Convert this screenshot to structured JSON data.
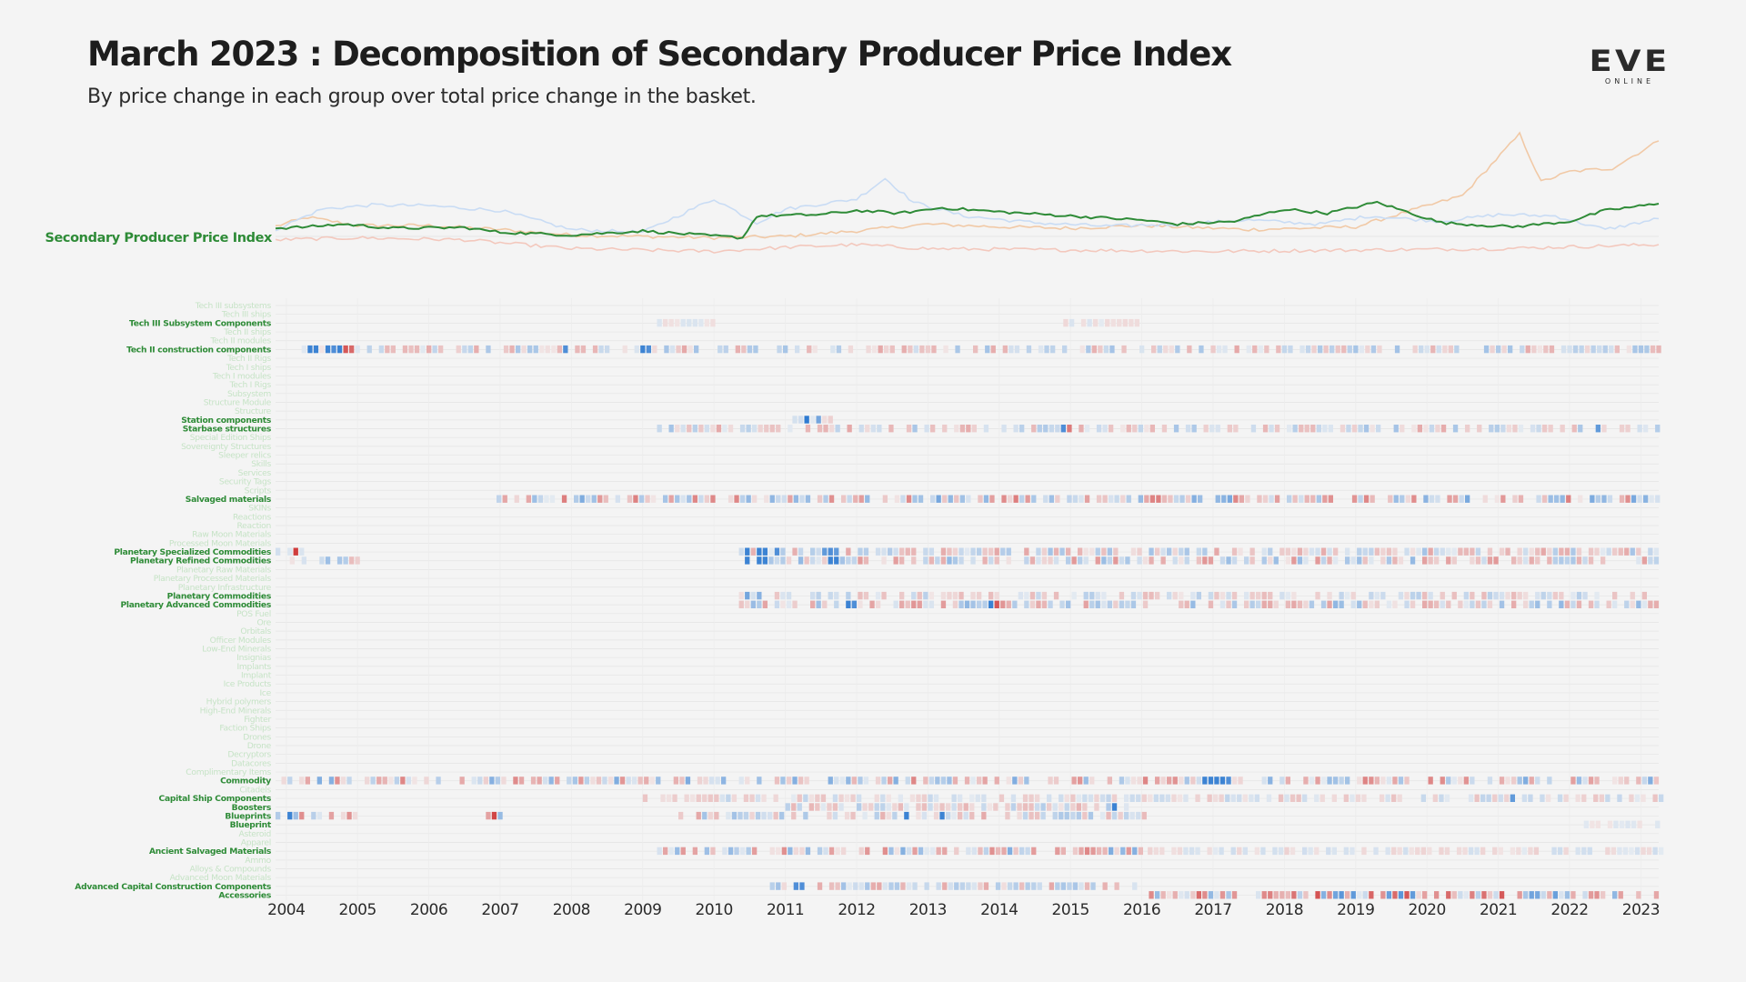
{
  "title": "March 2023 : Decomposition of Secondary Producer Price Index",
  "subtitle": "By price change in each group over total price change in the basket.",
  "logo": {
    "main": "EVE",
    "sub": "ONLINE"
  },
  "colors": {
    "index_line": "#2e8b37",
    "label_active": "#2e8b37",
    "label_faded": "#c6e3c6",
    "positive": "#cf3a3a",
    "negative": "#2f7bd1",
    "grid": "#e3e3e3",
    "ghost_red": "#f3c8bd",
    "ghost_blue": "#c9dcf4",
    "ghost_peach": "#f1c9a6"
  },
  "chart_data": {
    "type": "heatmap",
    "title": "March 2023 : Decomposition of Secondary Producer Price Index",
    "subtitle": "By price change in each group over total price change in the basket.",
    "x_ticks": [
      "2004",
      "2005",
      "2006",
      "2007",
      "2008",
      "2009",
      "2010",
      "2011",
      "2012",
      "2013",
      "2014",
      "2015",
      "2016",
      "2017",
      "2018",
      "2019",
      "2020",
      "2021",
      "2022",
      "2023"
    ],
    "x_range": [
      2003.85,
      2023.25
    ],
    "index_series": {
      "name": "Secondary Producer Price Index",
      "points": [
        [
          2003.85,
          0.12
        ],
        [
          2004.3,
          0.14
        ],
        [
          2004.8,
          0.18
        ],
        [
          2005.5,
          0.12
        ],
        [
          2006.5,
          0.13
        ],
        [
          2007.0,
          0.06
        ],
        [
          2008.0,
          0.02
        ],
        [
          2009.0,
          0.08
        ],
        [
          2009.8,
          0.02
        ],
        [
          2010.4,
          -0.02
        ],
        [
          2010.6,
          0.3
        ],
        [
          2011.5,
          0.32
        ],
        [
          2012.0,
          0.38
        ],
        [
          2012.6,
          0.34
        ],
        [
          2013.2,
          0.42
        ],
        [
          2014.0,
          0.36
        ],
        [
          2015.0,
          0.3
        ],
        [
          2016.0,
          0.24
        ],
        [
          2016.5,
          0.18
        ],
        [
          2017.3,
          0.22
        ],
        [
          2018.0,
          0.4
        ],
        [
          2018.6,
          0.34
        ],
        [
          2019.3,
          0.5
        ],
        [
          2020.2,
          0.2
        ],
        [
          2021.2,
          0.14
        ],
        [
          2022.0,
          0.22
        ],
        [
          2022.5,
          0.38
        ],
        [
          2023.25,
          0.48
        ]
      ]
    },
    "ghost_series": [
      {
        "name": "peach",
        "points": [
          [
            2003.85,
            0.15
          ],
          [
            2004.3,
            0.28
          ],
          [
            2005.0,
            0.16
          ],
          [
            2006.0,
            0.16
          ],
          [
            2007.0,
            0.1
          ],
          [
            2008.0,
            0.02
          ],
          [
            2010.0,
            -0.02
          ],
          [
            2011.0,
            0.0
          ],
          [
            2012.0,
            0.08
          ],
          [
            2013.0,
            0.18
          ],
          [
            2014.0,
            0.14
          ],
          [
            2015.0,
            0.12
          ],
          [
            2016.0,
            0.16
          ],
          [
            2017.5,
            0.1
          ],
          [
            2019.0,
            0.14
          ],
          [
            2020.5,
            0.6
          ],
          [
            2020.9,
            1.05
          ],
          [
            2021.3,
            1.5
          ],
          [
            2021.6,
            0.8
          ],
          [
            2022.0,
            0.95
          ],
          [
            2022.6,
            1.0
          ],
          [
            2023.25,
            1.4
          ]
        ]
      },
      {
        "name": "blue",
        "points": [
          [
            2003.85,
            0.1
          ],
          [
            2004.5,
            0.4
          ],
          [
            2005.2,
            0.46
          ],
          [
            2006.0,
            0.45
          ],
          [
            2007.0,
            0.38
          ],
          [
            2008.0,
            0.1
          ],
          [
            2009.0,
            0.06
          ],
          [
            2010.0,
            0.55
          ],
          [
            2010.6,
            0.2
          ],
          [
            2011.0,
            0.4
          ],
          [
            2012.0,
            0.55
          ],
          [
            2012.4,
            0.85
          ],
          [
            2012.8,
            0.5
          ],
          [
            2013.5,
            0.3
          ],
          [
            2014.5,
            0.2
          ],
          [
            2015.5,
            0.15
          ],
          [
            2016.5,
            0.18
          ],
          [
            2017.5,
            0.24
          ],
          [
            2018.5,
            0.18
          ],
          [
            2019.2,
            0.3
          ],
          [
            2020.2,
            0.22
          ],
          [
            2021.0,
            0.32
          ],
          [
            2021.8,
            0.3
          ],
          [
            2022.5,
            0.1
          ],
          [
            2023.25,
            0.26
          ]
        ]
      },
      {
        "name": "pink",
        "points": [
          [
            2003.85,
            -0.05
          ],
          [
            2005.0,
            -0.02
          ],
          [
            2006.5,
            -0.05
          ],
          [
            2008.0,
            -0.18
          ],
          [
            2010.0,
            -0.22
          ],
          [
            2011.0,
            -0.16
          ],
          [
            2012.0,
            -0.12
          ],
          [
            2013.0,
            -0.18
          ],
          [
            2015.0,
            -0.2
          ],
          [
            2017.0,
            -0.22
          ],
          [
            2019.0,
            -0.2
          ],
          [
            2021.0,
            -0.18
          ],
          [
            2023.25,
            -0.12
          ]
        ]
      }
    ],
    "categories": [
      "Tech III subsystems",
      "Tech III ships",
      "Tech III Subsystem Components",
      "Tech II ships",
      "Tech II modules",
      "Tech II construction components",
      "Tech II Rigs",
      "Tech I ships",
      "Tech I modules",
      "Tech I Rigs",
      "Subsystem",
      "Structure Module",
      "Structure",
      "Station components",
      "Starbase structures",
      "Special Edition Ships",
      "Sovereignty Structures",
      "Sleeper relics",
      "Skills",
      "Services",
      "Security Tags",
      "Scripts",
      "Salvaged materials",
      "SKINs",
      "Reactions",
      "Reaction",
      "Raw Moon Materials",
      "Processed Moon Materials",
      "Planetary Specialized Commodities",
      "Planetary Refined Commodities",
      "Planetary Raw Materials",
      "Planetary Processed Materials",
      "Planetary Infrastructure",
      "Planetary Commodities",
      "Planetary Advanced Commodities",
      "POS Fuel",
      "Ore",
      "Orbitals",
      "Officer Modules",
      "Low-End Minerals",
      "Insignias",
      "Implants",
      "Implant",
      "Ice Products",
      "Ice",
      "Hybrid polymers",
      "High-End Minerals",
      "Fighter",
      "Faction Ships",
      "Drones",
      "Drone",
      "Decryptors",
      "Datacores",
      "Complimentary Items",
      "Commodity",
      "Citadels",
      "Capital Ship Components",
      "Boosters",
      "Blueprints",
      "Blueprint",
      "Asteroid",
      "Apparel",
      "Ancient Salvaged Materials",
      "Ammo",
      "Alloys & Compounds",
      "Advanced Moon Materials",
      "Advanced Capital Construction Components",
      "Accessories"
    ],
    "active_categories": [
      "Tech III Subsystem Components",
      "Tech II construction components",
      "Station components",
      "Starbase structures",
      "Salvaged materials",
      "Planetary Specialized Commodities",
      "Planetary Refined Commodities",
      "Planetary Commodities",
      "Planetary Advanced Commodities",
      "Commodity",
      "Capital Ship Components",
      "Boosters",
      "Blueprints",
      "Blueprint",
      "Ancient Salvaged Materials",
      "Advanced Capital Construction Components",
      "Accessories"
    ],
    "value_scale": "signed share of total price change: positive (red) to negative (blue)",
    "row_series": [
      {
        "name": "Tech III Subsystem Components",
        "seed": 3,
        "spans": [
          [
            2009.2,
            2010.0,
            0.06
          ],
          [
            2014.9,
            2015.9,
            0.08
          ]
        ],
        "marks": [
          [
            2017.05,
            -1.0
          ]
        ]
      },
      {
        "name": "Tech II construction components",
        "seed": 5,
        "spans": [
          [
            2004.05,
            2023.25,
            0.35
          ]
        ],
        "marks": [
          [
            2004.3,
            -0.9
          ],
          [
            2004.45,
            -0.9
          ],
          [
            2004.55,
            -0.9
          ],
          [
            2004.65,
            -0.8
          ],
          [
            2004.75,
            -0.9
          ],
          [
            2004.85,
            0.8
          ],
          [
            2004.95,
            0.7
          ],
          [
            2007.9,
            -0.8
          ],
          [
            2009.0,
            -0.9
          ],
          [
            2009.1,
            -0.8
          ]
        ]
      },
      {
        "name": "Station components",
        "seed": 7,
        "spans": [
          [
            2011.1,
            2011.6,
            0.15
          ]
        ],
        "marks": [
          [
            2011.22,
            -1.0
          ],
          [
            2011.38,
            -0.6
          ]
        ]
      },
      {
        "name": "Starbase structures",
        "seed": 9,
        "spans": [
          [
            2009.2,
            2023.25,
            0.35
          ]
        ],
        "marks": [
          [
            2014.8,
            -0.8
          ],
          [
            2014.9,
            0.6
          ],
          [
            2022.3,
            -0.7
          ]
        ]
      },
      {
        "name": "Salvaged materials",
        "seed": 11,
        "spans": [
          [
            2006.95,
            2023.25,
            0.6
          ]
        ],
        "marks": []
      },
      {
        "name": "Planetary Specialized Commodities",
        "seed": 13,
        "spans": [
          [
            2003.85,
            2004.25,
            0.5
          ],
          [
            2010.35,
            2023.25,
            0.35
          ]
        ],
        "marks": [
          [
            2004.05,
            0.95
          ],
          [
            2010.45,
            -0.9
          ],
          [
            2010.55,
            -0.9
          ],
          [
            2010.65,
            -0.9
          ],
          [
            2010.85,
            -0.8
          ],
          [
            2011.5,
            -0.7
          ],
          [
            2011.6,
            -0.8
          ],
          [
            2011.7,
            -0.7
          ]
        ]
      },
      {
        "name": "Planetary Refined Commodities",
        "seed": 17,
        "spans": [
          [
            2004.05,
            2005.0,
            0.4
          ],
          [
            2010.35,
            2023.25,
            0.45
          ]
        ],
        "marks": [
          [
            2010.45,
            -0.9
          ],
          [
            2010.55,
            -0.9
          ],
          [
            2010.65,
            -0.9
          ],
          [
            2011.6,
            -0.9
          ],
          [
            2011.7,
            -0.9
          ]
        ]
      },
      {
        "name": "Planetary Commodities",
        "seed": 19,
        "spans": [
          [
            2010.35,
            2023.25,
            0.25
          ]
        ],
        "marks": [
          [
            2010.45,
            -0.6
          ],
          [
            2010.55,
            -0.5
          ]
        ]
      },
      {
        "name": "Planetary Advanced Commodities",
        "seed": 23,
        "spans": [
          [
            2010.35,
            2023.25,
            0.45
          ]
        ],
        "marks": [
          [
            2011.8,
            -0.9
          ],
          [
            2011.9,
            -0.8
          ],
          [
            2013.8,
            -0.9
          ],
          [
            2013.9,
            0.8
          ]
        ]
      },
      {
        "name": "Commodity",
        "seed": 29,
        "spans": [
          [
            2003.85,
            2023.25,
            0.55
          ]
        ],
        "marks": [
          [
            2016.8,
            -0.9
          ],
          [
            2016.9,
            -0.9
          ],
          [
            2017.0,
            -0.9
          ],
          [
            2017.1,
            -0.9
          ],
          [
            2017.2,
            -0.8
          ]
        ]
      },
      {
        "name": "Capital Ship Components",
        "seed": 31,
        "spans": [
          [
            2009.0,
            2023.25,
            0.2
          ]
        ],
        "marks": [
          [
            2021.2,
            -0.7
          ]
        ]
      },
      {
        "name": "Boosters",
        "seed": 37,
        "spans": [
          [
            2011.0,
            2015.8,
            0.3
          ]
        ],
        "marks": [
          [
            2015.6,
            -0.9
          ]
        ]
      },
      {
        "name": "Blueprints",
        "seed": 41,
        "spans": [
          [
            2003.85,
            2005.0,
            0.55
          ],
          [
            2006.8,
            2007.0,
            0.6
          ],
          [
            2009.5,
            2016.0,
            0.35
          ]
        ],
        "marks": [
          [
            2004.0,
            -0.9
          ],
          [
            2006.9,
            0.9
          ],
          [
            2012.7,
            -0.9
          ],
          [
            2013.2,
            -0.9
          ]
        ]
      },
      {
        "name": "Blueprint",
        "seed": 43,
        "spans": [
          [
            2022.2,
            2023.25,
            0.05
          ]
        ],
        "marks": []
      },
      {
        "name": "Ancient Salvaged Materials",
        "seed": 47,
        "spans": [
          [
            2009.2,
            2016.0,
            0.55
          ],
          [
            2016.0,
            2023.25,
            0.12
          ]
        ],
        "marks": []
      },
      {
        "name": "Advanced Capital Construction Components",
        "seed": 53,
        "spans": [
          [
            2010.7,
            2015.9,
            0.35
          ]
        ],
        "marks": [
          [
            2011.05,
            -0.8
          ],
          [
            2011.15,
            -0.8
          ]
        ]
      },
      {
        "name": "Accessories",
        "seed": 59,
        "spans": [
          [
            2016.1,
            2023.25,
            0.85
          ]
        ],
        "marks": []
      }
    ]
  }
}
